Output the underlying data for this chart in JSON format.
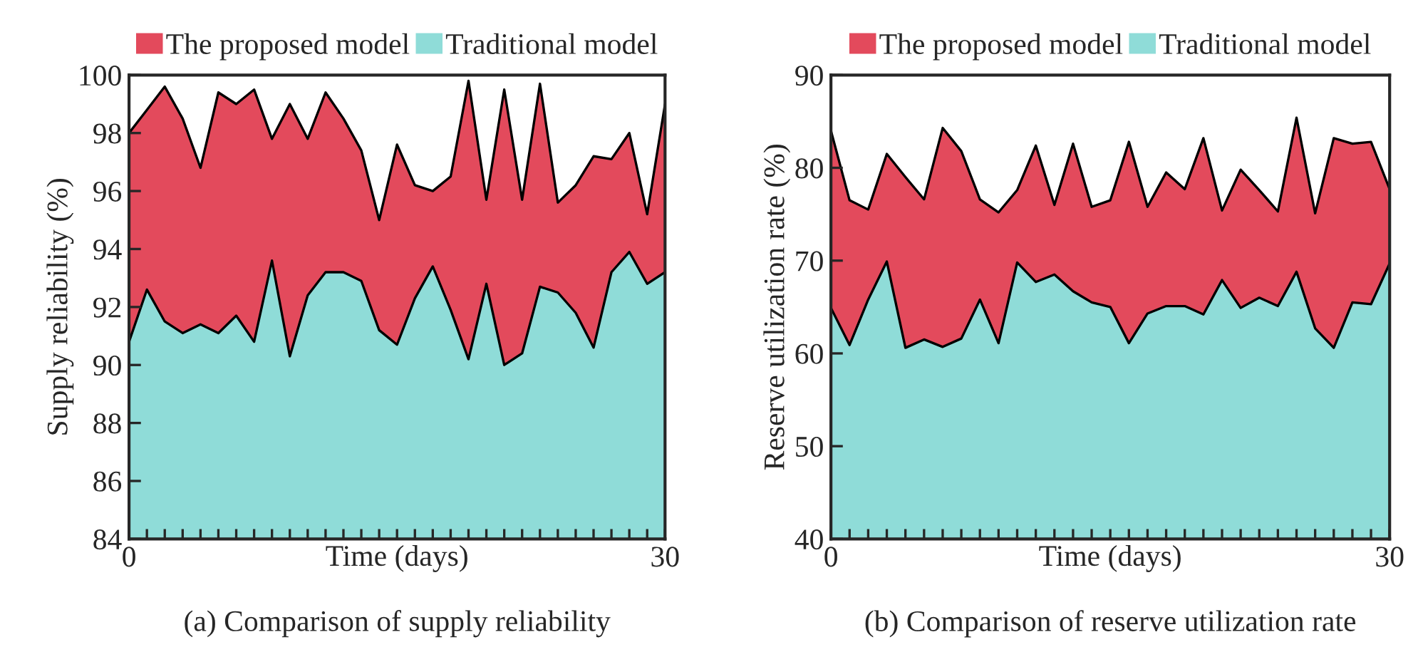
{
  "chart_data": [
    {
      "type": "area",
      "xlabel": "Time (days)",
      "ylabel": "Supply reliability (%)",
      "annotations": [
        "(a) Comparison of supply reliability"
      ],
      "legend": "top",
      "grid": false,
      "x": [
        0,
        1,
        2,
        3,
        4,
        5,
        6,
        7,
        8,
        9,
        10,
        11,
        12,
        13,
        14,
        15,
        16,
        17,
        18,
        19,
        20,
        21,
        22,
        23,
        24,
        25,
        26,
        27,
        28,
        29,
        30
      ],
      "xlim": [
        0,
        30
      ],
      "ylim": [
        84,
        100
      ],
      "yticks": [
        84,
        86,
        88,
        90,
        92,
        94,
        96,
        98,
        100
      ],
      "xticks": [
        0,
        {
          "value": 1,
          "label": null
        },
        {
          "value": 2,
          "label": null
        },
        {
          "value": 3,
          "label": null
        },
        {
          "value": 4,
          "label": null
        },
        {
          "value": 5,
          "label": null
        },
        {
          "value": 6,
          "label": null
        },
        {
          "value": 7,
          "label": null
        },
        {
          "value": 8,
          "label": null
        },
        {
          "value": 9,
          "label": null
        },
        {
          "value": 10,
          "label": null
        },
        {
          "value": 11,
          "label": null
        },
        {
          "value": 12,
          "label": null
        },
        {
          "value": 13,
          "label": null
        },
        {
          "value": 14,
          "label": null
        },
        {
          "value": 15,
          "label": null
        },
        {
          "value": 16,
          "label": null
        },
        {
          "value": 17,
          "label": null
        },
        {
          "value": 18,
          "label": null
        },
        {
          "value": 19,
          "label": null
        },
        {
          "value": 20,
          "label": null
        },
        {
          "value": 21,
          "label": null
        },
        {
          "value": 22,
          "label": null
        },
        {
          "value": 23,
          "label": null
        },
        {
          "value": 24,
          "label": null
        },
        {
          "value": 25,
          "label": null
        },
        {
          "value": 26,
          "label": null
        },
        {
          "value": 27,
          "label": null
        },
        {
          "value": 28,
          "label": null
        },
        {
          "value": 29,
          "label": null
        },
        30
      ],
      "series": [
        {
          "name": "The proposed model",
          "color": "#e34a5c",
          "values": [
            98.0,
            98.8,
            99.6,
            98.5,
            96.8,
            99.4,
            99.0,
            99.5,
            97.8,
            99.0,
            97.8,
            99.4,
            98.5,
            97.4,
            95.0,
            97.6,
            96.2,
            96.0,
            96.5,
            99.8,
            95.7,
            99.5,
            95.7,
            99.7,
            95.6,
            96.2,
            97.2,
            97.1,
            98.0,
            95.2,
            99.0
          ]
        },
        {
          "name": "Traditional model",
          "color": "#8fdcd8",
          "values": [
            90.8,
            92.6,
            91.5,
            91.1,
            91.4,
            91.1,
            91.7,
            90.8,
            93.6,
            90.3,
            92.4,
            93.2,
            93.2,
            92.9,
            91.2,
            90.7,
            92.3,
            93.4,
            91.9,
            90.2,
            92.8,
            90.0,
            90.4,
            92.7,
            92.5,
            91.8,
            90.6,
            93.2,
            93.9,
            92.8,
            93.2
          ]
        }
      ]
    },
    {
      "type": "area",
      "xlabel": "Time (days)",
      "ylabel": "Reserve utilization rate (%)",
      "annotations": [
        "(b) Comparison of reserve utilization rate"
      ],
      "legend": "top",
      "grid": false,
      "x": [
        0,
        1,
        2,
        3,
        4,
        5,
        6,
        7,
        8,
        9,
        10,
        11,
        12,
        13,
        14,
        15,
        16,
        17,
        18,
        19,
        20,
        21,
        22,
        23,
        24,
        25,
        26,
        27,
        28,
        29,
        30
      ],
      "xlim": [
        0,
        30
      ],
      "ylim": [
        40,
        90
      ],
      "yticks": [
        40,
        50,
        60,
        70,
        80,
        90
      ],
      "xticks": [
        0,
        {
          "value": 1,
          "label": null
        },
        {
          "value": 2,
          "label": null
        },
        {
          "value": 3,
          "label": null
        },
        {
          "value": 4,
          "label": null
        },
        {
          "value": 5,
          "label": null
        },
        {
          "value": 6,
          "label": null
        },
        {
          "value": 7,
          "label": null
        },
        {
          "value": 8,
          "label": null
        },
        {
          "value": 9,
          "label": null
        },
        {
          "value": 10,
          "label": null
        },
        {
          "value": 11,
          "label": null
        },
        {
          "value": 12,
          "label": null
        },
        {
          "value": 13,
          "label": null
        },
        {
          "value": 14,
          "label": null
        },
        {
          "value": 15,
          "label": null
        },
        {
          "value": 16,
          "label": null
        },
        {
          "value": 17,
          "label": null
        },
        {
          "value": 18,
          "label": null
        },
        {
          "value": 19,
          "label": null
        },
        {
          "value": 20,
          "label": null
        },
        {
          "value": 21,
          "label": null
        },
        {
          "value": 22,
          "label": null
        },
        {
          "value": 23,
          "label": null
        },
        {
          "value": 24,
          "label": null
        },
        {
          "value": 25,
          "label": null
        },
        {
          "value": 26,
          "label": null
        },
        {
          "value": 27,
          "label": null
        },
        {
          "value": 28,
          "label": null
        },
        {
          "value": 29,
          "label": null
        },
        30
      ],
      "series": [
        {
          "name": "The proposed model",
          "color": "#e34a5c",
          "values": [
            84.0,
            76.5,
            75.5,
            81.5,
            79.0,
            76.6,
            84.3,
            81.8,
            76.6,
            75.2,
            77.6,
            82.4,
            76.0,
            82.6,
            75.8,
            76.5,
            82.8,
            75.8,
            79.5,
            77.7,
            83.2,
            75.4,
            79.8,
            77.6,
            75.3,
            85.4,
            75.1,
            83.2,
            82.6,
            82.8,
            77.7
          ]
        },
        {
          "name": "Traditional model",
          "color": "#8fdcd8",
          "values": [
            64.9,
            60.9,
            65.8,
            69.9,
            60.6,
            61.5,
            60.7,
            61.6,
            65.8,
            61.1,
            69.8,
            67.7,
            68.5,
            66.7,
            65.5,
            65.0,
            61.1,
            64.3,
            65.1,
            65.1,
            64.2,
            67.9,
            64.9,
            66.0,
            65.1,
            68.8,
            62.7,
            60.6,
            65.5,
            65.3,
            69.7
          ]
        }
      ]
    }
  ]
}
